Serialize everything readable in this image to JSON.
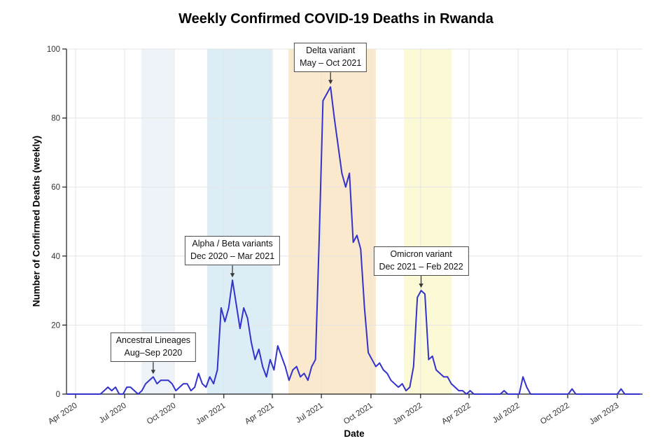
{
  "page": {
    "title": "Weekly Confirmed COVID-19 Deaths in Rwanda"
  },
  "chart_data": {
    "type": "line",
    "title": "Weekly Confirmed COVID-19 Deaths in Rwanda",
    "xlabel": "Date",
    "ylabel": "Number of Confirmed Deaths (weekly)",
    "ylim": [
      0,
      100
    ],
    "yticks": [
      0,
      20,
      40,
      60,
      80,
      100
    ],
    "xlim": [
      "2020-03-15",
      "2023-02-17"
    ],
    "grid": true,
    "legend": "none",
    "x_ticks": [
      {
        "label": "Apr 2020",
        "date": "2020-04-01"
      },
      {
        "label": "Jul 2020",
        "date": "2020-07-01"
      },
      {
        "label": "Oct 2020",
        "date": "2020-10-01"
      },
      {
        "label": "Jan 2021",
        "date": "2021-01-01"
      },
      {
        "label": "Apr 2021",
        "date": "2021-04-01"
      },
      {
        "label": "Jul 2021",
        "date": "2021-07-01"
      },
      {
        "label": "Oct 2021",
        "date": "2021-10-01"
      },
      {
        "label": "Jan 2022",
        "date": "2022-01-01"
      },
      {
        "label": "Apr 2022",
        "date": "2022-04-01"
      },
      {
        "label": "Jul 2022",
        "date": "2022-07-01"
      },
      {
        "label": "Oct 2022",
        "date": "2022-10-01"
      },
      {
        "label": "Jan 2023",
        "date": "2023-01-01"
      }
    ],
    "series": [
      {
        "name": "weekly_confirmed_deaths",
        "color": "#3333cc",
        "start_date": "2020-04-05",
        "interval_days": 7,
        "values": [
          0,
          0,
          0,
          0,
          0,
          0,
          0,
          1,
          2,
          1,
          2,
          0,
          0,
          2,
          2,
          1,
          0,
          1,
          3,
          4,
          5,
          3,
          4,
          4,
          4,
          3,
          1,
          2,
          3,
          3,
          1,
          2,
          6,
          3,
          2,
          5,
          3,
          7,
          25,
          21,
          25,
          33,
          26,
          19,
          25,
          22,
          15,
          10,
          13,
          8,
          5,
          10,
          7,
          14,
          11,
          8,
          4,
          7,
          8,
          5,
          6,
          4,
          8,
          10,
          45,
          85,
          87,
          89,
          80,
          72,
          64,
          60,
          64,
          44,
          46,
          42,
          25,
          12,
          10,
          8,
          9,
          7,
          6,
          4,
          3,
          2,
          3,
          1,
          2,
          8,
          28,
          30,
          29,
          10,
          11,
          7,
          6,
          5,
          5,
          3,
          2,
          1,
          1,
          0,
          1,
          0,
          0,
          0,
          0,
          0,
          0,
          0,
          0,
          1,
          0,
          0,
          0,
          0,
          5,
          2,
          0,
          0,
          0,
          0,
          0,
          0,
          0,
          0,
          0,
          0,
          0,
          1.5,
          0,
          0,
          0,
          0,
          0,
          0,
          0,
          0,
          0,
          0,
          0,
          0,
          1.5,
          0,
          0,
          0,
          0,
          0
        ]
      }
    ],
    "bands": [
      {
        "id": "ancestral",
        "start": "2020-08-01",
        "end": "2020-09-30",
        "color": "#edf3f8"
      },
      {
        "id": "alpha-beta",
        "start": "2020-12-01",
        "end": "2021-03-31",
        "color": "#dcedf6"
      },
      {
        "id": "delta",
        "start": "2021-05-01",
        "end": "2021-10-10",
        "color": "#fbe9ce"
      },
      {
        "id": "omicron",
        "start": "2021-12-01",
        "end": "2022-02-28",
        "color": "#fcfad6"
      }
    ],
    "annotations": [
      {
        "id": "ancestral",
        "line1": "Ancestral Lineages",
        "line2": "Aug–Sep 2020",
        "anchor_date": "2020-08-23",
        "anchor_value": 5
      },
      {
        "id": "alpha-beta",
        "line1": "Alpha / Beta variants",
        "line2": "Dec 2020 – Mar 2021",
        "anchor_date": "2021-01-17",
        "anchor_value": 33
      },
      {
        "id": "delta",
        "line1": "Delta variant",
        "line2": "May – Oct 2021",
        "anchor_date": "2021-07-18",
        "anchor_value": 89
      },
      {
        "id": "omicron",
        "line1": "Omicron variant",
        "line2": "Dec 2021 – Feb 2022",
        "anchor_date": "2022-01-02",
        "anchor_value": 30
      }
    ],
    "colors": {
      "line": "#3333cc",
      "gridline": "#e5e5e5",
      "axis": "#1a1a1a",
      "tick_label": "#333333",
      "annotation_border": "#4d4d4d"
    }
  }
}
